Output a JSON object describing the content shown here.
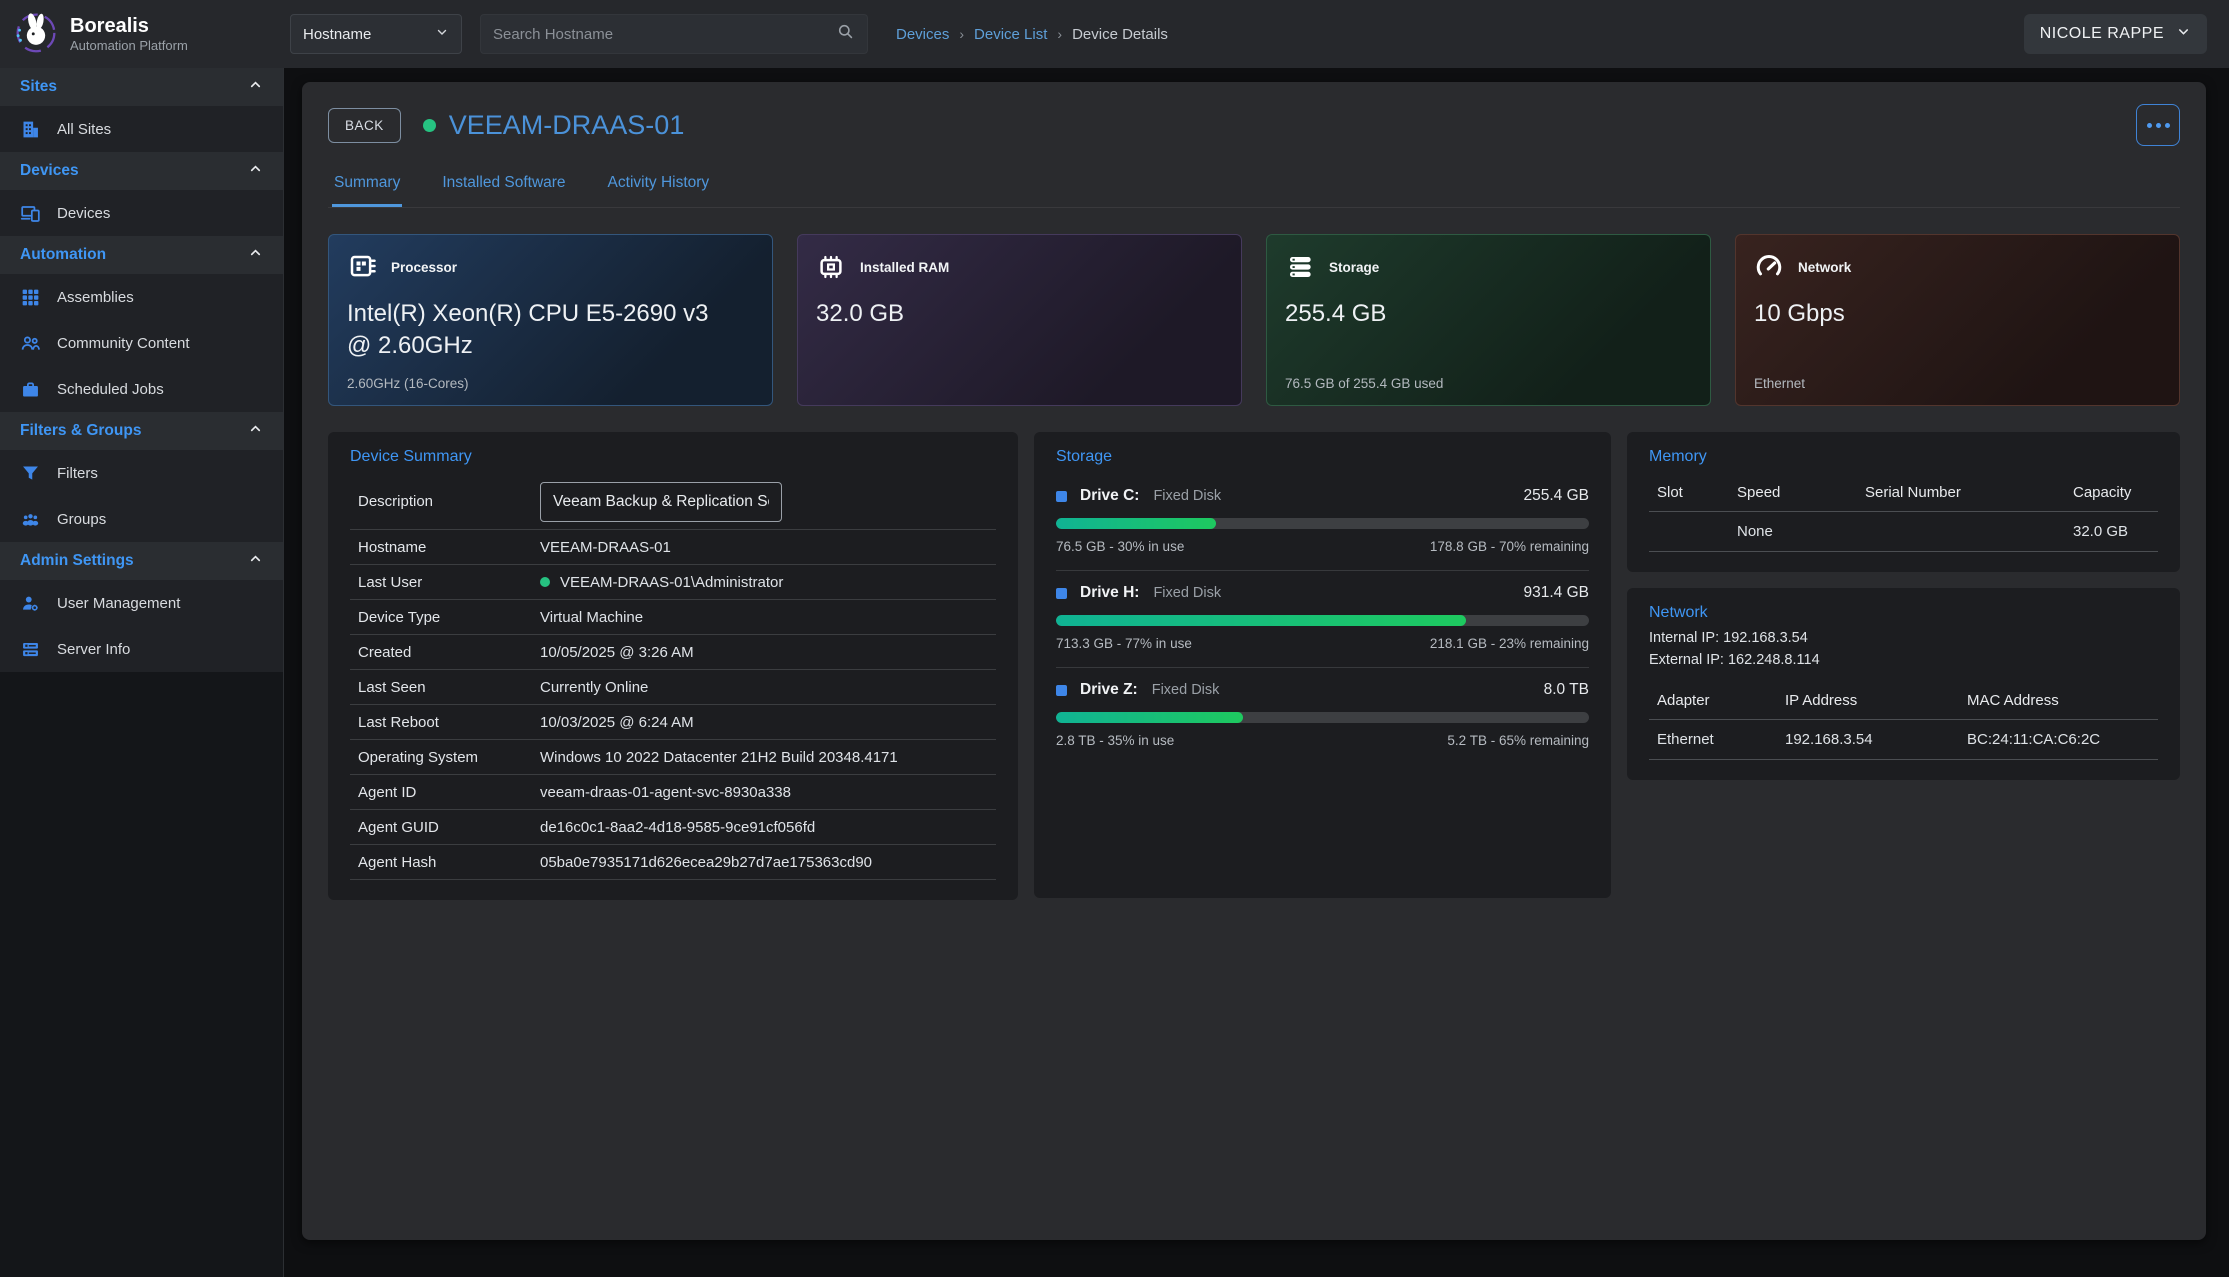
{
  "brand": {
    "name": "Borealis",
    "subtitle": "Automation Platform"
  },
  "topbar": {
    "filter_selected": "Hostname",
    "search_placeholder": "Search Hostname",
    "breadcrumb_separator": "›",
    "breadcrumbs": [
      {
        "label": "Devices"
      },
      {
        "label": "Device List"
      },
      {
        "label": "Device Details"
      }
    ],
    "user": "NICOLE RAPPE"
  },
  "sidebar": {
    "sections": [
      {
        "label": "Sites",
        "items": [
          {
            "label": "All Sites",
            "icon": "building-icon"
          }
        ]
      },
      {
        "label": "Devices",
        "items": [
          {
            "label": "Devices",
            "icon": "devices-icon"
          }
        ]
      },
      {
        "label": "Automation",
        "items": [
          {
            "label": "Assemblies",
            "icon": "grid-icon"
          },
          {
            "label": "Community Content",
            "icon": "people-icon"
          },
          {
            "label": "Scheduled Jobs",
            "icon": "briefcase-icon"
          }
        ]
      },
      {
        "label": "Filters & Groups",
        "items": [
          {
            "label": "Filters",
            "icon": "funnel-icon"
          },
          {
            "label": "Groups",
            "icon": "groups-icon"
          }
        ]
      },
      {
        "label": "Admin Settings",
        "items": [
          {
            "label": "User Management",
            "icon": "user-gear-icon"
          },
          {
            "label": "Server Info",
            "icon": "server-icon"
          }
        ]
      }
    ]
  },
  "device": {
    "back_label": "BACK",
    "name": "VEEAM-DRAAS-01",
    "status": "online",
    "tabs": [
      "Summary",
      "Installed Software",
      "Activity History"
    ],
    "active_tab": "Summary"
  },
  "stat_cards": [
    {
      "icon": "cpu-icon",
      "label": "Processor",
      "value": "Intel(R) Xeon(R) CPU E5-2690 v3 @ 2.60GHz",
      "sub": "2.60GHz (16-Cores)",
      "theme": "blue"
    },
    {
      "icon": "ram-icon",
      "label": "Installed RAM",
      "value": "32.0 GB",
      "sub": "",
      "theme": "purple"
    },
    {
      "icon": "storage-icon",
      "label": "Storage",
      "value": "255.4 GB",
      "sub": "76.5 GB of 255.4 GB used",
      "theme": "green"
    },
    {
      "icon": "gauge-icon",
      "label": "Network",
      "value": "10 Gbps",
      "sub": "Ethernet",
      "theme": "red"
    }
  ],
  "device_summary": {
    "title": "Device Summary",
    "rows": [
      {
        "label": "Description",
        "value": "Veeam Backup & Replication Server",
        "type": "input"
      },
      {
        "label": "Hostname",
        "value": "VEEAM-DRAAS-01"
      },
      {
        "label": "Last User",
        "value": "VEEAM-DRAAS-01\\Administrator",
        "online_dot": true
      },
      {
        "label": "Device Type",
        "value": "Virtual Machine"
      },
      {
        "label": "Created",
        "value": "10/05/2025 @ 3:26 AM"
      },
      {
        "label": "Last Seen",
        "value": "Currently Online"
      },
      {
        "label": "Last Reboot",
        "value": "10/03/2025 @ 6:24 AM"
      },
      {
        "label": "Operating System",
        "value": "Windows 10 2022 Datacenter 21H2 Build 20348.4171"
      },
      {
        "label": "Agent ID",
        "value": "veeam-draas-01-agent-svc-8930a338"
      },
      {
        "label": "Agent GUID",
        "value": "de16c0c1-8aa2-4d18-9585-9ce91cf056fd"
      },
      {
        "label": "Agent Hash",
        "value": "05ba0e7935171d626ecea29b27d7ae175363cd90"
      }
    ]
  },
  "storage_panel": {
    "title": "Storage",
    "drives": [
      {
        "name": "Drive C:",
        "type": "Fixed Disk",
        "size": "255.4 GB",
        "used_pct": 30,
        "used_text": "76.5 GB - 30% in use",
        "free_text": "178.8 GB - 70% remaining"
      },
      {
        "name": "Drive H:",
        "type": "Fixed Disk",
        "size": "931.4 GB",
        "used_pct": 77,
        "used_text": "713.3 GB - 77% in use",
        "free_text": "218.1 GB - 23% remaining"
      },
      {
        "name": "Drive Z:",
        "type": "Fixed Disk",
        "size": "8.0 TB",
        "used_pct": 35,
        "used_text": "2.8 TB - 35% in use",
        "free_text": "5.2 TB - 65% remaining"
      }
    ]
  },
  "memory_panel": {
    "title": "Memory",
    "columns": [
      "Slot",
      "Speed",
      "Serial Number",
      "Capacity"
    ],
    "rows": [
      [
        "",
        "None",
        "",
        "32.0 GB"
      ]
    ]
  },
  "network_panel": {
    "title": "Network",
    "internal_ip": "Internal IP: 192.168.3.54",
    "external_ip": "External IP: 162.248.8.114",
    "columns": [
      "Adapter",
      "IP Address",
      "MAC Address"
    ],
    "rows": [
      [
        "Ethernet",
        "192.168.3.54",
        "BC:24:11:CA:C6:2C"
      ]
    ]
  },
  "colors": {
    "accent_blue": "#3f96f4",
    "link_blue": "#5e9fd8",
    "title_blue": "#4b92d9",
    "online_green": "#26c281",
    "progress_start": "#10b394",
    "progress_end": "#1ec95f"
  }
}
